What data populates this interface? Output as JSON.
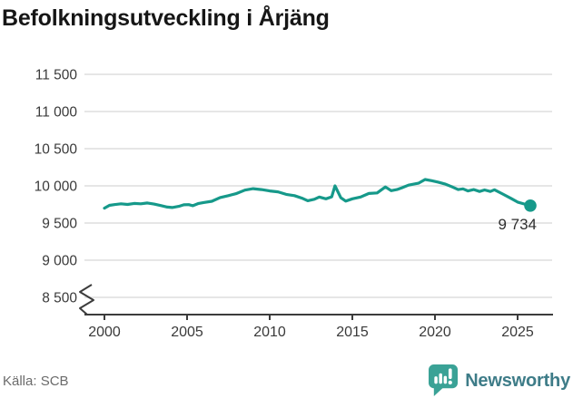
{
  "header": {
    "title": "Befolkningsutveckling i Årjäng"
  },
  "footer": {
    "source": "Källa: SCB",
    "brand": "Newsworthy",
    "brand_icon": "speech-bubble-bar-chart-icon"
  },
  "chart_data": {
    "type": "line",
    "title": "Befolkningsutveckling i Årjäng",
    "xlabel": "",
    "ylabel": "",
    "xlim": [
      1998.8,
      2027.1
    ],
    "ylim": [
      8500,
      11500
    ],
    "axis_break_below": 8500,
    "grid": "horizontal",
    "legend_position": "none",
    "x_ticks": [
      2000,
      2005,
      2010,
      2015,
      2020,
      2025
    ],
    "x_tick_labels": [
      "2000",
      "2005",
      "2010",
      "2015",
      "2020",
      "2025"
    ],
    "y_ticks": [
      8500,
      9000,
      9500,
      10000,
      10500,
      11000,
      11500
    ],
    "y_tick_labels": [
      "8 500",
      "9 000",
      "9 500",
      "10 000",
      "10 500",
      "11 000",
      "11 500"
    ],
    "end_label": "9 734",
    "last_value": 9734,
    "colors": {
      "line": "#16998a",
      "grid": "#e3e3e3",
      "axis": "#3c3c3c",
      "tick_label": "#3a3a3a",
      "end_label": "#2e2e2e",
      "brand_teal": "#3aa296",
      "brand_text": "#3e7c88"
    },
    "series": [
      {
        "points": [
          [
            2000.0,
            9700
          ],
          [
            2000.3,
            9738
          ],
          [
            2000.6,
            9748
          ],
          [
            2001.0,
            9758
          ],
          [
            2001.4,
            9750
          ],
          [
            2001.8,
            9763
          ],
          [
            2002.2,
            9758
          ],
          [
            2002.6,
            9770
          ],
          [
            2003.0,
            9755
          ],
          [
            2003.4,
            9735
          ],
          [
            2003.8,
            9715
          ],
          [
            2004.1,
            9708
          ],
          [
            2004.5,
            9725
          ],
          [
            2004.8,
            9745
          ],
          [
            2005.1,
            9748
          ],
          [
            2005.35,
            9733
          ],
          [
            2005.7,
            9763
          ],
          [
            2006.0,
            9775
          ],
          [
            2006.5,
            9793
          ],
          [
            2007.0,
            9843
          ],
          [
            2007.5,
            9868
          ],
          [
            2008.0,
            9898
          ],
          [
            2008.5,
            9943
          ],
          [
            2009.0,
            9962
          ],
          [
            2009.5,
            9950
          ],
          [
            2010.0,
            9932
          ],
          [
            2010.5,
            9920
          ],
          [
            2011.0,
            9885
          ],
          [
            2011.5,
            9868
          ],
          [
            2012.0,
            9830
          ],
          [
            2012.3,
            9800
          ],
          [
            2012.7,
            9820
          ],
          [
            2013.0,
            9850
          ],
          [
            2013.4,
            9825
          ],
          [
            2013.75,
            9852
          ],
          [
            2013.95,
            10000
          ],
          [
            2014.3,
            9840
          ],
          [
            2014.6,
            9795
          ],
          [
            2015.0,
            9825
          ],
          [
            2015.5,
            9850
          ],
          [
            2016.0,
            9898
          ],
          [
            2016.5,
            9905
          ],
          [
            2017.0,
            9985
          ],
          [
            2017.35,
            9935
          ],
          [
            2017.7,
            9950
          ],
          [
            2018.0,
            9975
          ],
          [
            2018.4,
            10010
          ],
          [
            2019.0,
            10035
          ],
          [
            2019.4,
            10085
          ],
          [
            2019.8,
            10070
          ],
          [
            2020.2,
            10050
          ],
          [
            2020.6,
            10025
          ],
          [
            2021.0,
            9990
          ],
          [
            2021.4,
            9950
          ],
          [
            2021.7,
            9960
          ],
          [
            2022.0,
            9932
          ],
          [
            2022.35,
            9950
          ],
          [
            2022.7,
            9925
          ],
          [
            2023.0,
            9945
          ],
          [
            2023.35,
            9925
          ],
          [
            2023.6,
            9948
          ],
          [
            2024.1,
            9890
          ],
          [
            2024.6,
            9832
          ],
          [
            2025.0,
            9782
          ],
          [
            2025.4,
            9756
          ],
          [
            2025.77,
            9734
          ]
        ]
      }
    ]
  }
}
